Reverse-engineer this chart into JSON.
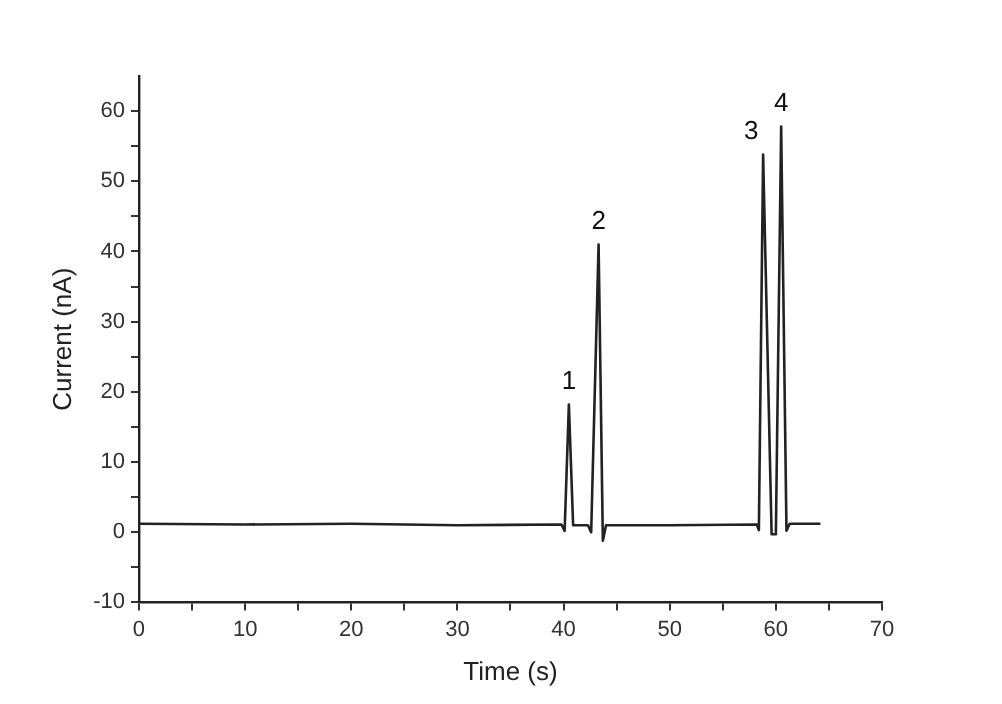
{
  "chart_data": {
    "type": "line",
    "xlabel": "Time (s)",
    "ylabel": "Current (nA)",
    "x": [
      0,
      10,
      20,
      30,
      39.8,
      40.1,
      40.5,
      40.9,
      42.3,
      42.6,
      43.3,
      43.7,
      44.0,
      50,
      58.2,
      58.4,
      58.8,
      59.6,
      60.0,
      60.5,
      61.0,
      61.3,
      64.2
    ],
    "series": [
      {
        "color": "#222222",
        "values": [
          1.2,
          1.1,
          1.2,
          1.0,
          1.1,
          0.2,
          18.2,
          1.0,
          1.0,
          0.0,
          41,
          -1.2,
          1.0,
          1.0,
          1.1,
          0.3,
          53.8,
          -0.3,
          -0.3,
          57.8,
          0.2,
          1.2,
          1.2
        ]
      }
    ],
    "xlim": [
      0,
      70
    ],
    "xticks": [
      0,
      {
        "value": 5,
        "label": null
      },
      10,
      {
        "value": 15,
        "label": null
      },
      20,
      {
        "value": 25,
        "label": null
      },
      30,
      {
        "value": 35,
        "label": null
      },
      40,
      {
        "value": 45,
        "label": null
      },
      50,
      {
        "value": 55,
        "label": null
      },
      60,
      {
        "value": 65,
        "label": null
      },
      70
    ],
    "ylim": [
      -10,
      65
    ],
    "yticks": [
      -10,
      {
        "value": -5,
        "label": null
      },
      0,
      {
        "value": 5,
        "label": null
      },
      10,
      {
        "value": 15,
        "label": null
      },
      20,
      {
        "value": 25,
        "label": null
      },
      30,
      {
        "value": 35,
        "label": null
      },
      40,
      {
        "value": 45,
        "label": null
      },
      50,
      {
        "value": 55,
        "label": null
      },
      60
    ],
    "annotations": [
      {
        "text": "1",
        "x": 40.5,
        "y": 18.2
      },
      {
        "text": "2",
        "x": 43.3,
        "y": 41
      },
      {
        "text": "3",
        "x": 58.8,
        "y": 53.8
      },
      {
        "text": "4",
        "x": 60.5,
        "y": 57.8
      }
    ],
    "grid": false,
    "legend": false,
    "marker": "none",
    "line_style": "solid"
  }
}
